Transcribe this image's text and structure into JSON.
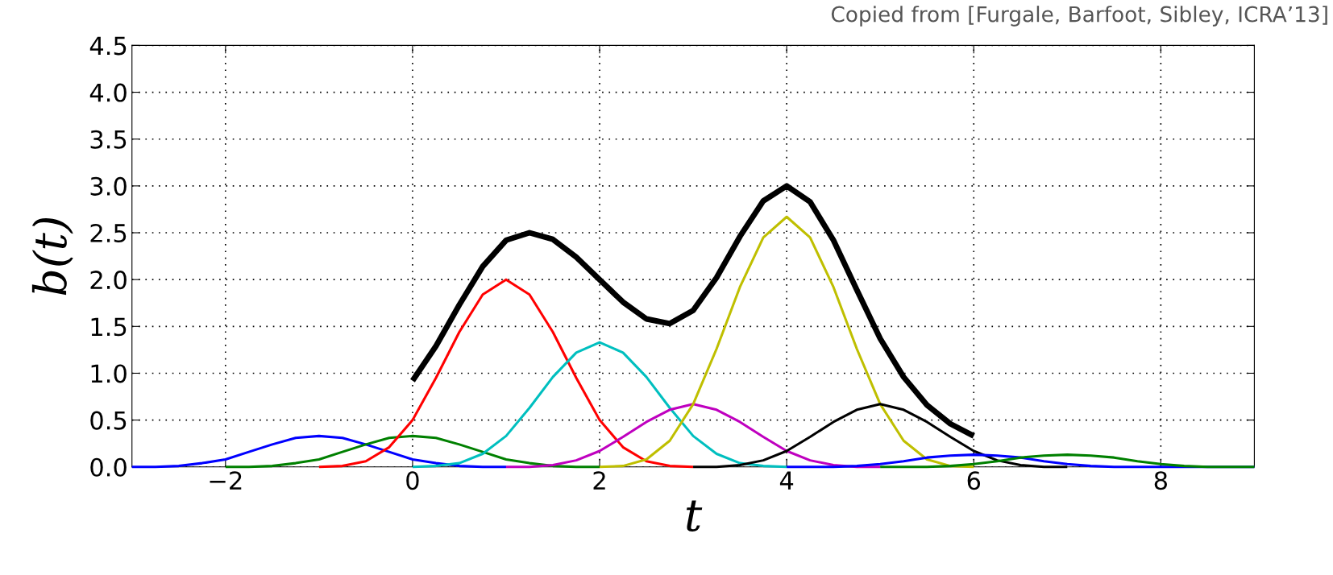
{
  "chart_data": {
    "type": "line",
    "xlabel": "t",
    "ylabel": "b(t)",
    "annotations": [
      "Copied from [Furgale, Barfoot, Sibley, ICRA’13]"
    ],
    "series": [
      {
        "color": "#000000",
        "x": [
          0,
          0.25,
          0.5,
          0.75,
          1,
          1.25,
          1.5,
          1.75,
          2,
          2.25,
          2.5,
          2.75,
          3,
          3.25,
          3.5,
          3.75,
          4,
          4.25,
          4.5,
          4.75,
          5,
          5.25,
          5.5,
          5.75,
          6
        ],
        "values": [
          0.92,
          1.29,
          1.73,
          2.14,
          2.42,
          2.5,
          2.43,
          2.24,
          2.0,
          1.76,
          1.58,
          1.53,
          1.67,
          2.02,
          2.46,
          2.84,
          3.0,
          2.83,
          2.42,
          1.89,
          1.37,
          0.96,
          0.66,
          0.46,
          0.33
        ]
      },
      {
        "color": "#0000ff",
        "x": [
          -3,
          -2.75,
          -2.5,
          -2.25,
          -2,
          -1.75,
          -1.5,
          -1.25,
          -1,
          -0.75,
          -0.5,
          -0.25,
          0,
          0.25,
          0.5,
          0.75,
          1
        ],
        "values": [
          0,
          0,
          0.01,
          0.04,
          0.08,
          0.16,
          0.24,
          0.31,
          0.33,
          0.31,
          0.24,
          0.16,
          0.08,
          0.04,
          0.01,
          0,
          0
        ]
      },
      {
        "color": "#008000",
        "x": [
          -2,
          -1.75,
          -1.5,
          -1.25,
          -1,
          -0.75,
          -0.5,
          -0.25,
          0,
          0.25,
          0.5,
          0.75,
          1,
          1.25,
          1.5,
          1.75,
          2
        ],
        "values": [
          0,
          0,
          0.01,
          0.04,
          0.08,
          0.16,
          0.24,
          0.31,
          0.33,
          0.31,
          0.24,
          0.16,
          0.08,
          0.04,
          0.01,
          0,
          0
        ]
      },
      {
        "color": "#ff0000",
        "x": [
          -1,
          -0.75,
          -0.5,
          -0.25,
          0,
          0.25,
          0.5,
          0.75,
          1,
          1.25,
          1.5,
          1.75,
          2,
          2.25,
          2.5,
          2.75,
          3
        ],
        "values": [
          0,
          0.01,
          0.06,
          0.21,
          0.5,
          0.95,
          1.44,
          1.84,
          2.0,
          1.84,
          1.44,
          0.95,
          0.5,
          0.21,
          0.06,
          0.01,
          0
        ]
      },
      {
        "color": "#00bfbf",
        "x": [
          0,
          0.25,
          0.5,
          0.75,
          1,
          1.25,
          1.5,
          1.75,
          2,
          2.25,
          2.5,
          2.75,
          3,
          3.25,
          3.5,
          3.75,
          4
        ],
        "values": [
          0,
          0.01,
          0.04,
          0.14,
          0.33,
          0.63,
          0.96,
          1.22,
          1.33,
          1.22,
          0.96,
          0.63,
          0.33,
          0.14,
          0.04,
          0.01,
          0
        ]
      },
      {
        "color": "#bf00bf",
        "x": [
          1,
          1.25,
          1.5,
          1.75,
          2,
          2.25,
          2.5,
          2.75,
          3,
          3.25,
          3.5,
          3.75,
          4,
          4.25,
          4.5,
          4.75,
          5
        ],
        "values": [
          0,
          0,
          0.02,
          0.07,
          0.17,
          0.32,
          0.48,
          0.61,
          0.67,
          0.61,
          0.48,
          0.32,
          0.17,
          0.07,
          0.02,
          0,
          0
        ]
      },
      {
        "color": "#bfbf00",
        "x": [
          2,
          2.25,
          2.5,
          2.75,
          3,
          3.25,
          3.5,
          3.75,
          4,
          4.25,
          4.5,
          4.75,
          5,
          5.25,
          5.5,
          5.75,
          6
        ],
        "values": [
          0,
          0.01,
          0.08,
          0.28,
          0.67,
          1.26,
          1.92,
          2.45,
          2.67,
          2.45,
          1.92,
          1.26,
          0.67,
          0.28,
          0.08,
          0.01,
          0
        ]
      },
      {
        "color": "#000000",
        "x": [
          3,
          3.25,
          3.5,
          3.75,
          4,
          4.25,
          4.5,
          4.75,
          5,
          5.25,
          5.5,
          5.75,
          6,
          6.25,
          6.5,
          6.75,
          7
        ],
        "values": [
          0,
          0,
          0.02,
          0.07,
          0.17,
          0.32,
          0.48,
          0.61,
          0.67,
          0.61,
          0.48,
          0.32,
          0.17,
          0.07,
          0.02,
          0,
          0
        ]
      },
      {
        "color": "#0000ff",
        "x": [
          4,
          4.25,
          4.5,
          4.75,
          5,
          5.25,
          5.5,
          5.75,
          6,
          6.25,
          6.5,
          6.75,
          7,
          7.25,
          7.5,
          7.75,
          8,
          9
        ],
        "values": [
          0,
          0,
          0,
          0.01,
          0.03,
          0.06,
          0.1,
          0.12,
          0.13,
          0.12,
          0.1,
          0.06,
          0.03,
          0.01,
          0,
          0,
          0,
          0
        ]
      },
      {
        "color": "#008000",
        "x": [
          5,
          5.25,
          5.5,
          5.75,
          6,
          6.25,
          6.5,
          6.75,
          7,
          7.25,
          7.5,
          7.75,
          8,
          8.25,
          8.5,
          8.75,
          9
        ],
        "values": [
          0,
          0,
          0,
          0.01,
          0.03,
          0.06,
          0.1,
          0.12,
          0.13,
          0.12,
          0.1,
          0.06,
          0.03,
          0.01,
          0,
          0,
          0
        ]
      }
    ],
    "xlim": [
      -3,
      9
    ],
    "xticks": [
      {
        "value": -2,
        "label": "−2"
      },
      0,
      2,
      4,
      6,
      8
    ],
    "ylim": [
      0,
      4.5
    ],
    "yticks": [
      {
        "value": 0,
        "label": "0.0"
      },
      {
        "value": 0.5,
        "label": "0.5"
      },
      {
        "value": 1,
        "label": "1.0"
      },
      {
        "value": 1.5,
        "label": "1.5"
      },
      {
        "value": 2,
        "label": "2.0"
      },
      {
        "value": 2.5,
        "label": "2.5"
      },
      {
        "value": 3,
        "label": "3.0"
      },
      {
        "value": 3.5,
        "label": "3.5"
      },
      {
        "value": 4,
        "label": "4.0"
      },
      {
        "value": 4.5,
        "label": "4.5"
      }
    ],
    "grid": true,
    "line_style": "solid"
  }
}
